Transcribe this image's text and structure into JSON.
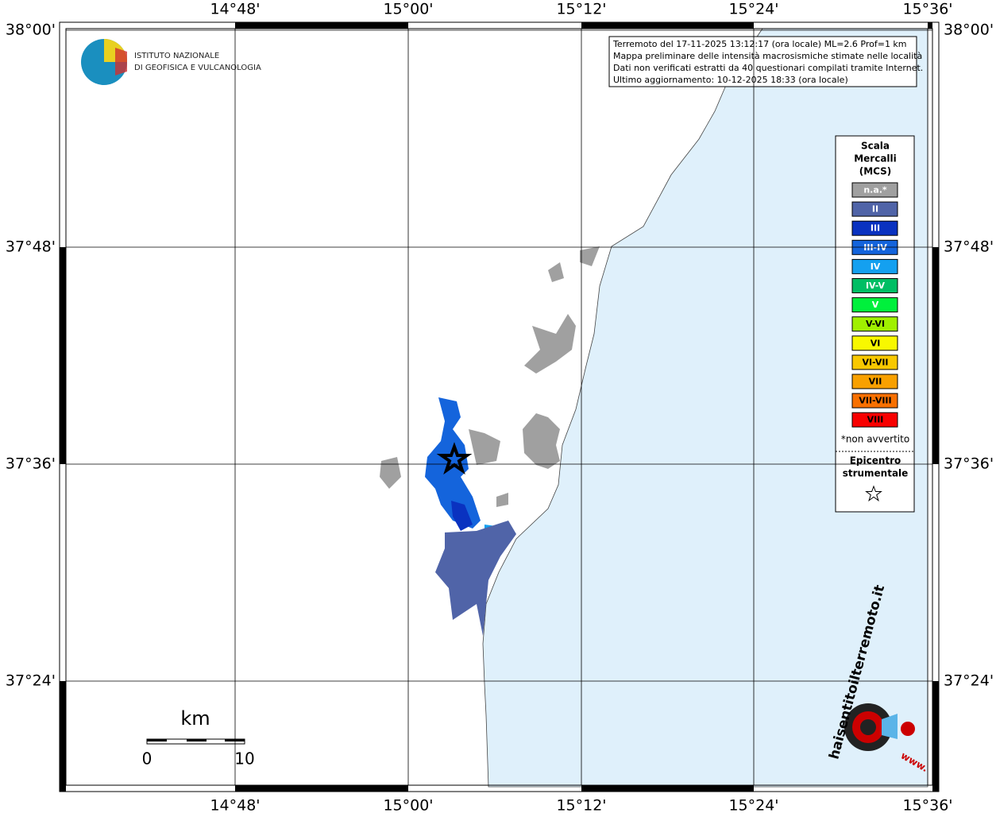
{
  "header": {
    "org_line1": "ISTITUTO NAZIONALE",
    "org_line2": "DI GEOFISICA E VULCANOLOGIA"
  },
  "info": [
    "Terremoto del 17-11-2025 13:12:17 (ora locale) ML=2.6 Prof=1 km",
    "Mappa preliminare delle intensità macrosismiche stimate nelle località",
    "Dati non verificati estratti da 40 questionari compilati tramite Internet.",
    "Ultimo aggiornamento: 10-12-2025 18:33 (ora locale)"
  ],
  "lon_ticks": [
    "14°48'",
    "15°00'",
    "15°12'",
    "15°24'",
    "15°36'"
  ],
  "lat_ticks": [
    "38°00'",
    "37°48'",
    "37°36'",
    "37°24'"
  ],
  "legend": {
    "title": [
      "Scala",
      "Mercalli",
      "(MCS)"
    ],
    "items": [
      {
        "label": "n.a.*",
        "color": "#a0a0a0"
      },
      {
        "label": "II",
        "color": "#5064a8"
      },
      {
        "label": "III",
        "color": "#0a32c0"
      },
      {
        "label": "III-IV",
        "color": "#1464dc"
      },
      {
        "label": "IV",
        "color": "#14a0f0"
      },
      {
        "label": "IV-V",
        "color": "#00be64"
      },
      {
        "label": "V",
        "color": "#00f03c"
      },
      {
        "label": "V-VI",
        "color": "#a0f000"
      },
      {
        "label": "VI",
        "color": "#f8f800"
      },
      {
        "label": "VI-VII",
        "color": "#f8c800"
      },
      {
        "label": "VII",
        "color": "#f8a000"
      },
      {
        "label": "VII-VIII",
        "color": "#f87000"
      },
      {
        "label": "VIII",
        "color": "#f80000"
      }
    ],
    "note": "*non avvertito",
    "epicenter": [
      "Epicentro",
      "strumentale"
    ]
  },
  "scale": {
    "unit": "km",
    "start": "0",
    "end": "10"
  },
  "badge": {
    "site": "haisentitoilterremoto.it",
    "prefix": "www."
  }
}
